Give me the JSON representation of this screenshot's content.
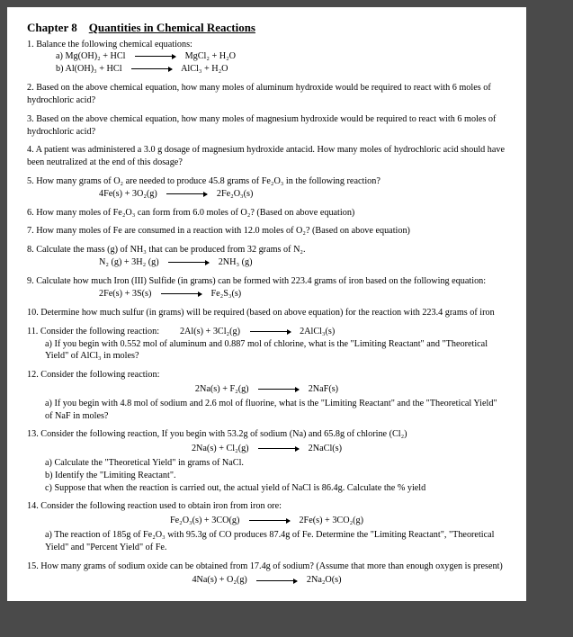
{
  "chapter": {
    "label": "Chapter 8",
    "title": "Quantities in Chemical Reactions"
  },
  "q1": {
    "text": "1. Balance the following chemical equations:",
    "a_left": "a)   Mg(OH)₂  +  HCl",
    "a_right": "MgCl₂  +   H₂O",
    "b_left": "b)   Al(OH)₃   +   HCl",
    "b_right": "AlCl₃  +   H₂O"
  },
  "q2": "2. Based on the above chemical equation, how many moles of aluminum hydroxide would be required to react with 6 moles of hydrochloric acid?",
  "q3": "3. Based on the above chemical equation, how many moles of magnesium hydroxide would be required to react with 6 moles of hydrochloric acid?",
  "q4": "4. A patient was administered a 3.0 g dosage of magnesium hydroxide antacid. How many moles of hydrochloric acid should have been neutralized at the end of this dosage?",
  "q5": {
    "text": "5. How many grams of O₂ are needed to produce 45.8 grams of Fe₂O₃ in the following reaction?",
    "eq_left": "4Fe(s)  +  3O₂(g)",
    "eq_right": "2Fe₂O₃(s)"
  },
  "q6": "6. How many moles of Fe₂O₃ can form from 6.0 moles of O₂? (Based on above equation)",
  "q7": "7. How many moles of Fe are consumed in a reaction with 12.0 moles of O₂? (Based on above equation)",
  "q8": {
    "text": "8. Calculate the mass (g) of NH₃ that can be produced from 32 grams of N₂.",
    "eq_left": "N₂ (g)   +   3H₂ (g)",
    "eq_right": "2NH₃ (g)"
  },
  "q9": {
    "text": "9.  Calculate how much Iron (III) Sulfide (in grams) can be formed with 223.4 grams of iron based on the following equation:",
    "eq_left": "2Fe(s)  +  3S(s)",
    "eq_right": "Fe₂S₃(s)"
  },
  "q10": "10. Determine how much sulfur (in grams) will be required (based on above equation) for the reaction with 223.4 grams of iron",
  "q11": {
    "text": "11. Consider the following reaction:",
    "eq_left": "2Al(s)  +  3Cl₂(g)",
    "eq_right": "2AlCl₃(s)",
    "a": "a)    If you begin with 0.552 mol of aluminum and 0.887 mol of chlorine, what is the \"Limiting Reactant\" and \"Theoretical Yield\" of AlCl₃ in moles?"
  },
  "q12": {
    "text": "12. Consider the following reaction:",
    "eq_left": "2Na(s)   +   F₂(g)",
    "eq_right": "2NaF(s)",
    "a": "a)  If you begin with 4.8 mol of sodium and 2.6 mol of fluorine, what is the \"Limiting Reactant\" and the \"Theoretical Yield\" of NaF in moles?"
  },
  "q13": {
    "text": "13. Consider the following reaction, If you begin with 53.2g of sodium (Na) and 65.8g of chlorine (Cl₂)",
    "eq_left": "2Na(s)   +   Cl₂(g)",
    "eq_right": "2NaCl(s)",
    "a": "a) Calculate the \"Theoretical Yield\" in grams of NaCl.",
    "b": "b) Identify the \"Limiting Reactant\".",
    "c": "c) Suppose that when the reaction is carried out, the actual yield of NaCl is 86.4g. Calculate the % yield"
  },
  "q14": {
    "text": "14. Consider the following reaction used to obtain iron from iron ore:",
    "eq_left": "Fe₂O₃(s)   +   3CO(g)",
    "eq_right": "2Fe(s)   +  3CO₂(g)",
    "a": "a)  The reaction of 185g of Fe₂O₃ with 95.3g of CO produces 87.4g of Fe. Determine the \"Limiting Reactant\", \"Theoretical Yield\" and \"Percent Yield\" of Fe."
  },
  "q15": {
    "text": "15.  How many grams of sodium oxide can be obtained from 17.4g of sodium? (Assume that more than enough oxygen is present)",
    "eq_left": "4Na(s)   +   O₂(g)",
    "eq_right": "2Na₂O(s)"
  }
}
